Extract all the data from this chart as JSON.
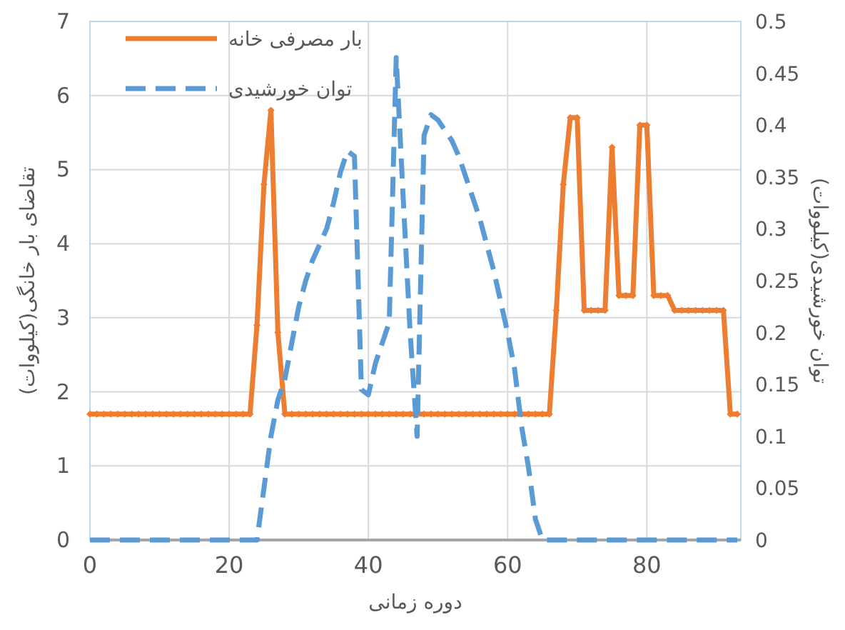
{
  "chart_data": {
    "type": "line",
    "xlabel": "دوره زمانی",
    "ylabel": "تقاضای بار خانگی(کیلووات)",
    "y2label": "توان خورشیدی(کیلووات)",
    "x": [
      0,
      1,
      2,
      3,
      4,
      5,
      6,
      7,
      8,
      9,
      10,
      11,
      12,
      13,
      14,
      15,
      16,
      17,
      18,
      19,
      20,
      21,
      22,
      23,
      24,
      25,
      26,
      27,
      28,
      29,
      30,
      31,
      32,
      33,
      34,
      35,
      36,
      37,
      38,
      39,
      40,
      41,
      42,
      43,
      44,
      45,
      46,
      47,
      48,
      49,
      50,
      51,
      52,
      53,
      54,
      55,
      56,
      57,
      58,
      59,
      60,
      61,
      62,
      63,
      64,
      65,
      66,
      67,
      68,
      69,
      70,
      71,
      72,
      73,
      74,
      75,
      76,
      77,
      78,
      79,
      80,
      81,
      82,
      83,
      84,
      85,
      86,
      87,
      88,
      89,
      90,
      91,
      92,
      93
    ],
    "series": [
      {
        "name": "بار مصرفی خانه",
        "color": "#ed7d31",
        "marker": "diamond",
        "line_style": "solid",
        "values": [
          1.7,
          1.7,
          1.7,
          1.7,
          1.7,
          1.7,
          1.7,
          1.7,
          1.7,
          1.7,
          1.7,
          1.7,
          1.7,
          1.7,
          1.7,
          1.7,
          1.7,
          1.7,
          1.7,
          1.7,
          1.7,
          1.7,
          1.7,
          1.7,
          2.9,
          4.8,
          5.8,
          2.8,
          1.7,
          1.7,
          1.7,
          1.7,
          1.7,
          1.7,
          1.7,
          1.7,
          1.7,
          1.7,
          1.7,
          1.7,
          1.7,
          1.7,
          1.7,
          1.7,
          1.7,
          1.7,
          1.7,
          1.7,
          1.7,
          1.7,
          1.7,
          1.7,
          1.7,
          1.7,
          1.7,
          1.7,
          1.7,
          1.7,
          1.7,
          1.7,
          1.7,
          1.7,
          1.7,
          1.7,
          1.7,
          1.7,
          1.7,
          3.1,
          4.8,
          5.7,
          5.7,
          3.1,
          3.1,
          3.1,
          3.1,
          5.3,
          3.3,
          3.3,
          3.3,
          5.6,
          5.6,
          3.3,
          3.3,
          3.3,
          3.1,
          3.1,
          3.1,
          3.1,
          3.1,
          3.1,
          3.1,
          3.1,
          1.7,
          1.7
        ]
      },
      {
        "name": "توان خورشیدی",
        "color": "#5b9bd5",
        "marker": "none",
        "line_style": "dashed",
        "axis": "y2",
        "values": [
          0,
          0,
          0,
          0,
          0,
          0,
          0,
          0,
          0,
          0,
          0,
          0,
          0,
          0,
          0,
          0,
          0,
          0,
          0,
          0,
          0,
          0,
          0,
          0,
          0,
          0.05,
          0.1,
          0.135,
          0.155,
          0.19,
          0.225,
          0.25,
          0.27,
          0.285,
          0.3,
          0.325,
          0.355,
          0.375,
          0.37,
          0.145,
          0.14,
          0.17,
          0.19,
          0.21,
          0.465,
          0.33,
          0.2,
          0.1,
          0.39,
          0.41,
          0.405,
          0.395,
          0.385,
          0.37,
          0.35,
          0.33,
          0.31,
          0.285,
          0.26,
          0.23,
          0.2,
          0.165,
          0.11,
          0.07,
          0.02,
          0,
          0,
          0,
          0,
          0,
          0,
          0,
          0,
          0,
          0,
          0,
          0,
          0,
          0,
          0,
          0,
          0,
          0,
          0,
          0,
          0,
          0,
          0,
          0,
          0,
          0,
          0,
          0,
          0
        ]
      }
    ],
    "xlim": [
      0,
      93.5
    ],
    "xticks": [
      0,
      20,
      40,
      60,
      80
    ],
    "ylim": [
      0,
      7
    ],
    "yticks": [
      0,
      1,
      2,
      3,
      4,
      5,
      6,
      7
    ],
    "y2lim": [
      0,
      0.5
    ],
    "y2ticks": [
      0,
      0.05,
      0.1,
      0.15,
      0.2,
      0.25,
      0.3,
      0.35,
      0.4,
      0.45,
      0.5
    ],
    "grid": true,
    "legend": "top left"
  }
}
